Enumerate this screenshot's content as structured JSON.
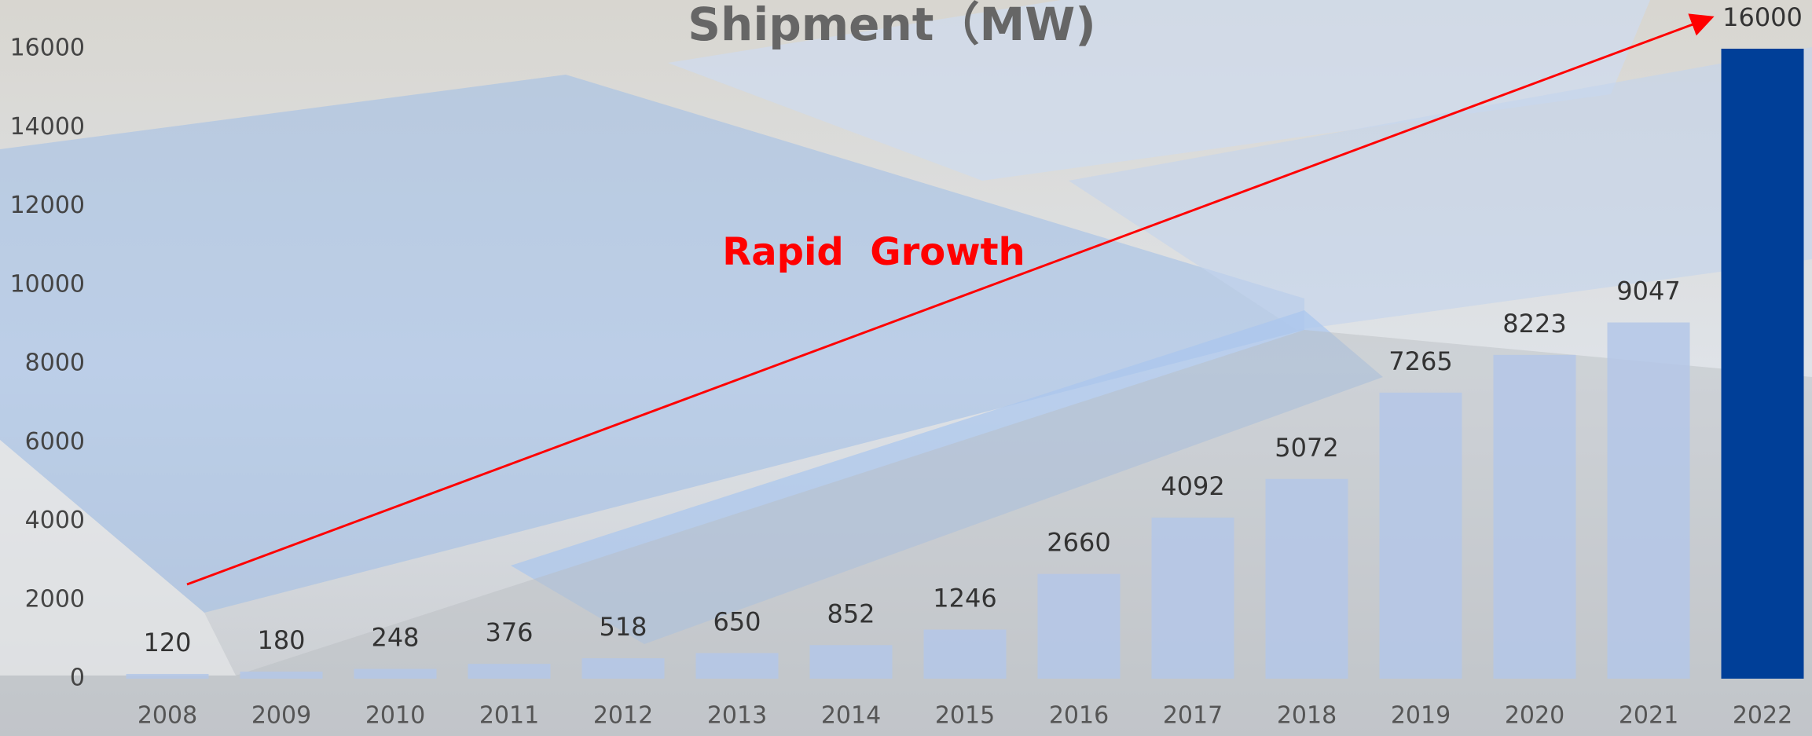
{
  "chart_data": {
    "type": "bar",
    "title": "Shipment（MW)",
    "categories": [
      "2008",
      "2009",
      "2010",
      "2011",
      "2012",
      "2013",
      "2014",
      "2015",
      "2016",
      "2017",
      "2018",
      "2019",
      "2020",
      "2021",
      "2022"
    ],
    "values": [
      120,
      180,
      248,
      376,
      518,
      650,
      852,
      1246,
      2660,
      4092,
      5072,
      7265,
      8223,
      9047,
      16000
    ],
    "colors": [
      "#b4c7e7",
      "#b4c7e7",
      "#b4c7e7",
      "#b4c7e7",
      "#b4c7e7",
      "#b4c7e7",
      "#b4c7e7",
      "#b4c7e7",
      "#b4c7e7",
      "#b4c7e7",
      "#b4c7e7",
      "#b4c7e7",
      "#b4c7e7",
      "#b4c7e7",
      "#003f98"
    ],
    "ylim": [
      0,
      16000
    ],
    "yticks": [
      0,
      2000,
      4000,
      6000,
      8000,
      10000,
      12000,
      14000,
      16000
    ],
    "grid": false,
    "annotations": [
      {
        "text": "Rapid  Growth",
        "color": "#ff0000"
      }
    ]
  }
}
